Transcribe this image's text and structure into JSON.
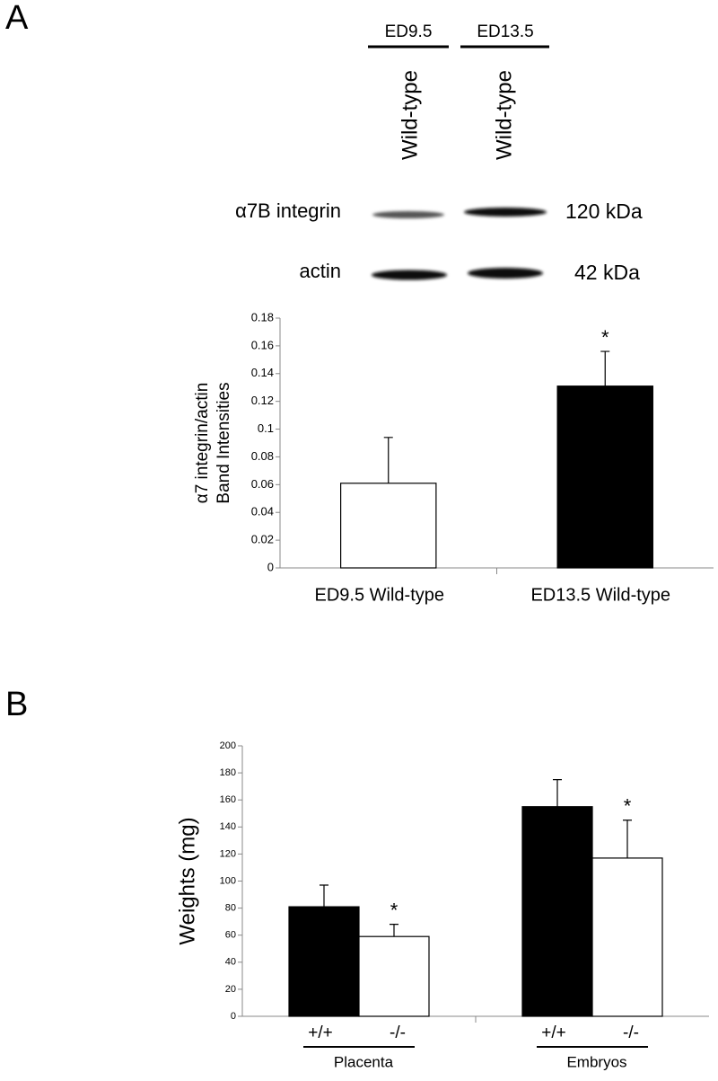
{
  "figure": {
    "panel_labels": [
      "A",
      "B"
    ],
    "blot": {
      "lanes": [
        {
          "stage": "ED9.5",
          "genotype": "Wild-type"
        },
        {
          "stage": "ED13.5",
          "genotype": "Wild-type"
        }
      ],
      "rows": [
        {
          "protein": "α7B integrin",
          "size": "120 kDa"
        },
        {
          "protein": "actin",
          "size": "42 kDa"
        }
      ]
    }
  },
  "chart_data": [
    {
      "type": "bar",
      "ylabel": [
        "α7 integrin/actin",
        "Band Intensities"
      ],
      "categories": [
        "ED9.5 Wild-type",
        "ED13.5 Wild-type"
      ],
      "values": [
        0.061,
        0.131
      ],
      "errors": [
        0.033,
        0.025
      ],
      "colors": [
        "#ffffff",
        "#000000"
      ],
      "significance": [
        null,
        "*"
      ],
      "ylim": [
        0,
        0.18
      ],
      "yticks": [
        0,
        0.02,
        0.04,
        0.06,
        0.08,
        0.1,
        0.12,
        0.14,
        0.16,
        0.18
      ]
    },
    {
      "type": "bar",
      "ylabel": [
        "Weights (mg)"
      ],
      "categories": [
        "Placenta",
        "Embryos"
      ],
      "series": [
        {
          "name": "+/+",
          "color": "#000000",
          "values": [
            81,
            155
          ],
          "errors": [
            16,
            20
          ],
          "significance": [
            null,
            null
          ]
        },
        {
          "name": "-/-",
          "color": "#ffffff",
          "values": [
            59,
            117
          ],
          "errors": [
            9,
            28
          ],
          "significance": [
            "*",
            "*"
          ]
        }
      ],
      "ylim": [
        0,
        200
      ],
      "yticks": [
        0,
        20,
        40,
        60,
        80,
        100,
        120,
        140,
        160,
        180,
        200
      ]
    }
  ]
}
